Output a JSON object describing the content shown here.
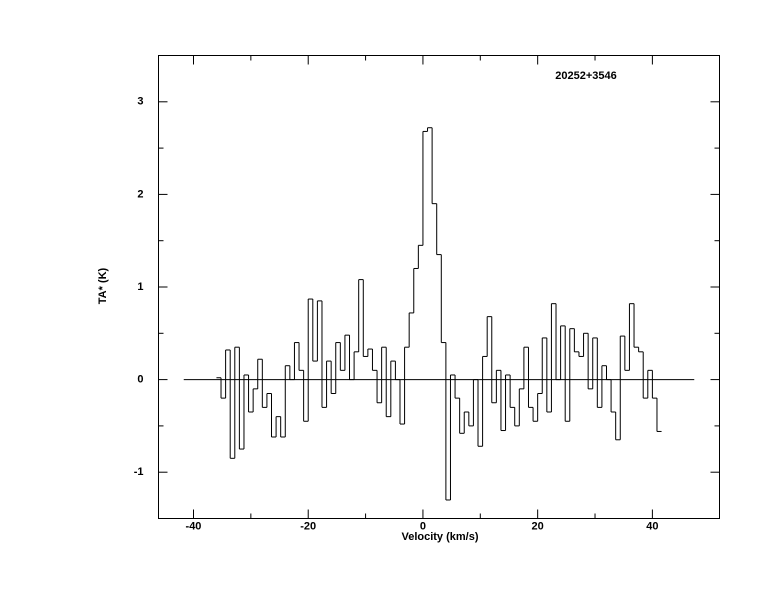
{
  "chart_data": {
    "type": "step",
    "title": "20252+3546",
    "xlabel": "Velocity (km/s)",
    "ylabel": "TA* (K)",
    "xlim": [
      -46.1,
      51.7
    ],
    "ylim": [
      -1.5,
      3.5
    ],
    "xticks": [
      -40,
      -20,
      0,
      20,
      40
    ],
    "xticks_minor": [
      -30,
      -10,
      10,
      30
    ],
    "yticks": [
      -1,
      0,
      1,
      2,
      3
    ],
    "yticks_minor": [
      -0.5,
      0.5,
      1.5,
      2.5
    ],
    "zero_line": {
      "x": [
        -41.7,
        47.3
      ],
      "y": 0
    },
    "color": "#000000",
    "channel_width": 0.8,
    "x": [
      -35.6,
      -34.8,
      -34.0,
      -33.2,
      -32.4,
      -31.6,
      -30.8,
      -30.0,
      -29.2,
      -28.4,
      -27.6,
      -26.8,
      -26.0,
      -25.2,
      -24.4,
      -23.6,
      -22.8,
      -22.0,
      -21.2,
      -20.4,
      -19.6,
      -18.8,
      -18.0,
      -17.2,
      -16.4,
      -15.6,
      -14.8,
      -14.0,
      -13.2,
      -12.4,
      -11.6,
      -10.8,
      -10.0,
      -9.2,
      -8.4,
      -7.6,
      -6.8,
      -6.0,
      -5.2,
      -4.4,
      -3.6,
      -2.8,
      -2.0,
      -1.2,
      -0.4,
      0.4,
      1.2,
      2.0,
      2.8,
      3.6,
      4.4,
      5.2,
      6.0,
      6.8,
      7.6,
      8.4,
      9.2,
      10.0,
      10.8,
      11.6,
      12.4,
      13.2,
      14.0,
      14.8,
      15.6,
      16.4,
      17.2,
      18.0,
      18.8,
      19.6,
      20.4,
      21.2,
      22.0,
      22.8,
      23.6,
      24.4,
      25.2,
      26.0,
      26.8,
      27.6,
      28.4,
      29.2,
      30.0,
      30.8,
      31.6,
      32.4,
      33.2,
      34.0,
      34.8,
      35.6,
      36.4,
      37.2,
      38.0,
      38.8,
      39.6,
      40.4,
      41.2
    ],
    "values": [
      0.02,
      -0.2,
      0.32,
      -0.85,
      0.35,
      -0.75,
      0.05,
      -0.35,
      -0.1,
      0.22,
      -0.3,
      -0.15,
      -0.62,
      -0.4,
      -0.62,
      0.15,
      0,
      0.4,
      0.1,
      -0.45,
      0.87,
      0.2,
      0.85,
      -0.3,
      0.2,
      -0.15,
      0.4,
      0.1,
      0.48,
      0,
      0.3,
      1.08,
      0.25,
      0.33,
      0.1,
      -0.25,
      0.35,
      -0.4,
      0.2,
      0,
      -0.48,
      0.35,
      0.72,
      1.2,
      1.45,
      2.68,
      2.72,
      1.9,
      1.35,
      0.4,
      -1.3,
      0.05,
      -0.2,
      -0.58,
      -0.35,
      -0.5,
      0,
      -0.72,
      0.25,
      0.68,
      -0.25,
      0.1,
      -0.55,
      0.05,
      -0.3,
      -0.5,
      -0.1,
      0.35,
      -0.3,
      -0.45,
      -0.15,
      0.45,
      -0.35,
      0.82,
      0,
      0.58,
      -0.45,
      0.55,
      0.3,
      0.25,
      0.5,
      -0.1,
      0.45,
      -0.3,
      0.15,
      0,
      -0.35,
      -0.65,
      0.47,
      0.1,
      0.82,
      0.35,
      0.3,
      -0.2,
      0.1,
      -0.2,
      -0.56
    ]
  }
}
